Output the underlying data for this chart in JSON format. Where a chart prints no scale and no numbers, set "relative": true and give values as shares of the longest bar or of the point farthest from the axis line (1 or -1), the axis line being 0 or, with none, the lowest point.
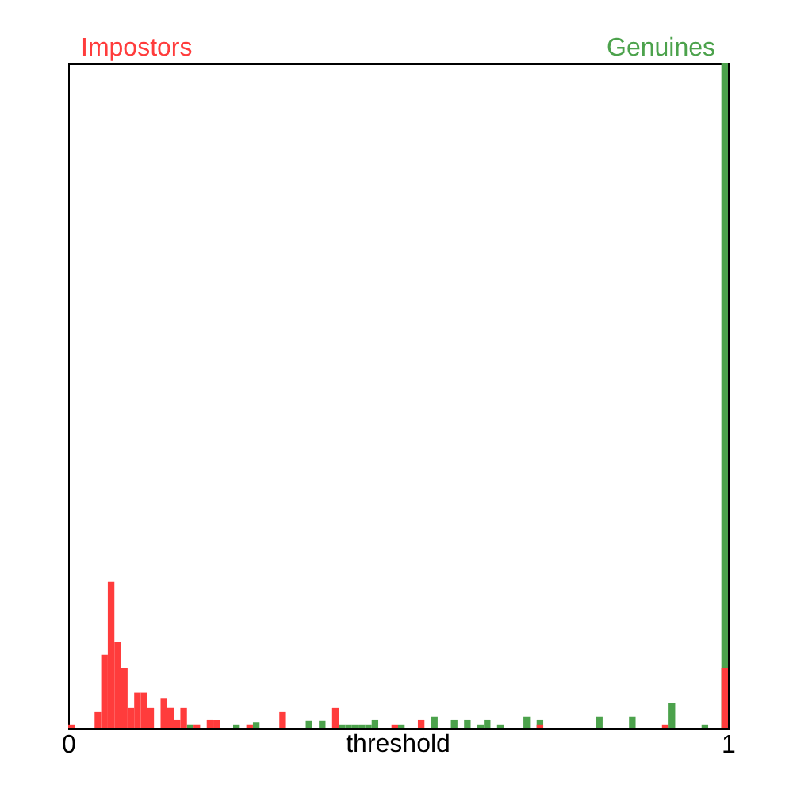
{
  "chart_data": {
    "type": "bar",
    "relative": true,
    "xlabel": "threshold",
    "xlim": [
      0,
      1
    ],
    "xticks": [
      0,
      1
    ],
    "grid": false,
    "x": [
      0.005,
      0.015,
      0.025,
      0.035,
      0.045,
      0.055,
      0.065,
      0.075,
      0.085,
      0.095,
      0.105,
      0.115,
      0.125,
      0.135,
      0.145,
      0.155,
      0.165,
      0.175,
      0.185,
      0.195,
      0.205,
      0.215,
      0.225,
      0.235,
      0.245,
      0.255,
      0.265,
      0.275,
      0.285,
      0.295,
      0.305,
      0.315,
      0.325,
      0.335,
      0.345,
      0.355,
      0.365,
      0.375,
      0.385,
      0.395,
      0.405,
      0.415,
      0.425,
      0.435,
      0.445,
      0.455,
      0.465,
      0.475,
      0.485,
      0.495,
      0.505,
      0.515,
      0.525,
      0.535,
      0.545,
      0.555,
      0.565,
      0.575,
      0.585,
      0.595,
      0.605,
      0.615,
      0.625,
      0.635,
      0.645,
      0.655,
      0.665,
      0.675,
      0.685,
      0.695,
      0.705,
      0.715,
      0.725,
      0.735,
      0.745,
      0.755,
      0.765,
      0.775,
      0.785,
      0.795,
      0.805,
      0.815,
      0.825,
      0.835,
      0.845,
      0.855,
      0.865,
      0.875,
      0.885,
      0.895,
      0.905,
      0.915,
      0.925,
      0.935,
      0.945,
      0.955,
      0.965,
      0.975,
      0.985,
      0.995
    ],
    "series": [
      {
        "name": "Genuines",
        "color": "#4ca24c",
        "values": [
          0,
          0,
          0,
          0,
          0,
          0,
          0,
          0,
          0,
          0,
          0,
          0,
          0,
          0,
          0,
          0,
          0,
          0,
          0.005,
          0,
          0,
          0,
          0,
          0,
          0,
          0.005,
          0,
          0,
          0.008,
          0,
          0,
          0,
          0,
          0,
          0,
          0,
          0.011,
          0,
          0.011,
          0,
          0,
          0.005,
          0.005,
          0.005,
          0.005,
          0.005,
          0.012,
          0,
          0,
          0,
          0.005,
          0,
          0,
          0,
          0,
          0.017,
          0,
          0,
          0.012,
          0,
          0.012,
          0,
          0.005,
          0.012,
          0,
          0.005,
          0,
          0,
          0,
          0.017,
          0,
          0.012,
          0,
          0,
          0,
          0,
          0,
          0,
          0,
          0,
          0.017,
          0,
          0,
          0,
          0,
          0.017,
          0,
          0,
          0,
          0,
          0,
          0.038,
          0,
          0,
          0,
          0,
          0.005,
          0,
          0,
          1
        ]
      },
      {
        "name": "Impostors",
        "color": "#ff3c3c",
        "values": [
          0.005,
          0,
          0,
          0,
          0.024,
          0.11,
          0.22,
          0.13,
          0.09,
          0.03,
          0.053,
          0.053,
          0.03,
          0,
          0.045,
          0.03,
          0.012,
          0.03,
          0,
          0.005,
          0,
          0.012,
          0.012,
          0,
          0,
          0,
          0,
          0.005,
          0,
          0,
          0,
          0,
          0.024,
          0,
          0,
          0,
          0,
          0,
          0,
          0,
          0.03,
          0,
          0,
          0,
          0,
          0,
          0,
          0,
          0,
          0.005,
          0,
          0,
          0,
          0.012,
          0,
          0,
          0,
          0,
          0,
          0,
          0,
          0,
          0,
          0,
          0,
          0,
          0,
          0,
          0,
          0,
          0,
          0.005,
          0,
          0,
          0,
          0,
          0,
          0,
          0,
          0,
          0,
          0,
          0,
          0,
          0,
          0,
          0,
          0,
          0,
          0,
          0.005,
          0,
          0,
          0,
          0,
          0,
          0,
          0,
          0,
          0.09
        ]
      }
    ]
  }
}
